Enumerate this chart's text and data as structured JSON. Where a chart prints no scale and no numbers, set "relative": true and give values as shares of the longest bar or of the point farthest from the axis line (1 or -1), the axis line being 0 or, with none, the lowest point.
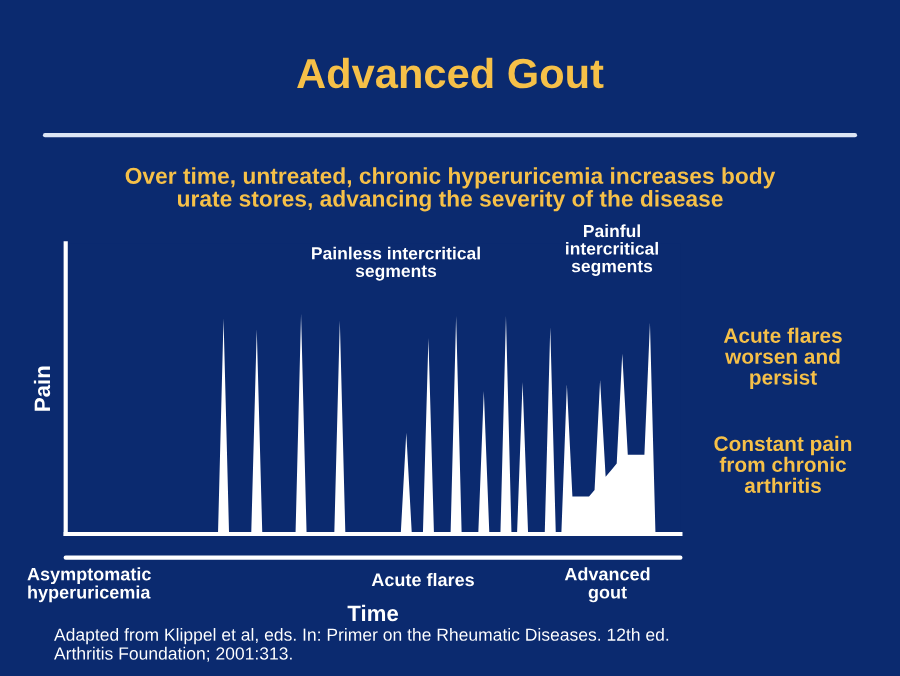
{
  "chart_data": {
    "type": "area",
    "title": "Advanced Gout",
    "subtitle": "Over time, untreated, chronic hyperuricemia increases body urate stores, advancing the severity of the disease",
    "xlabel": "Time",
    "ylabel": "Pain",
    "relative": true,
    "color": "#ffffff",
    "categories": [
      null,
      null,
      null,
      null,
      null,
      null,
      null,
      null,
      null,
      null,
      null,
      null,
      null,
      null,
      null,
      null,
      null,
      null,
      null,
      null,
      null,
      null,
      null,
      null,
      null,
      null,
      null,
      null,
      null,
      null,
      null,
      null,
      null,
      null,
      null,
      null,
      null,
      null,
      null,
      null,
      null,
      null,
      null,
      null,
      null,
      null,
      null,
      null,
      null,
      null,
      null,
      null,
      null,
      null,
      null,
      null,
      null,
      null,
      null,
      null,
      null,
      null,
      null,
      null,
      null,
      null,
      null,
      null,
      null,
      null,
      null,
      null,
      null,
      null,
      null,
      null,
      null,
      null,
      null,
      null,
      null,
      null,
      null,
      null,
      null,
      null,
      null,
      null,
      null,
      null,
      null,
      null,
      null,
      null,
      null,
      null,
      null,
      null,
      null,
      null,
      null,
      null,
      null,
      null,
      null,
      null,
      null,
      null,
      null,
      null,
      null
    ],
    "values": [
      0,
      0,
      0,
      0,
      0,
      0,
      0,
      0,
      0,
      0,
      0,
      0,
      0,
      0,
      0,
      0,
      0,
      0,
      0,
      0,
      0,
      0,
      0,
      0,
      0,
      0,
      0,
      0,
      0.98,
      0,
      0,
      0,
      0,
      0,
      0.93,
      0,
      0,
      0,
      0,
      0,
      0,
      0,
      1.0,
      0,
      0,
      0,
      0,
      0,
      0,
      0.97,
      0,
      0,
      0,
      0,
      0,
      0,
      0,
      0,
      0,
      0,
      0,
      0.46,
      0,
      0,
      0,
      0.89,
      0,
      0,
      0,
      0,
      0.99,
      0,
      0,
      0,
      0,
      0.65,
      0,
      0,
      0,
      0.99,
      0,
      0,
      0.69,
      0,
      0,
      0,
      0,
      0.94,
      0,
      0,
      0.68,
      0.17,
      0.17,
      0.17,
      0.17,
      0.2,
      0.7,
      0.26,
      0.29,
      0.32,
      0.82,
      0.36,
      0.36,
      0.36,
      0.36,
      0.96,
      0,
      0,
      0,
      0,
      0
    ],
    "annotations": [
      "Painless intercritical segments",
      "Painful intercritical segments",
      "Acute flares worsen and persist",
      "Constant pain from chronic arthritis",
      "Asymptomatic hyperuricemia",
      "Acute flares",
      "Advanced gout",
      "Adapted from Klippel et al, eds. In: Primer on the Rheumatic Diseases. 12th ed. Arthritis Foundation;  2001:313."
    ]
  }
}
